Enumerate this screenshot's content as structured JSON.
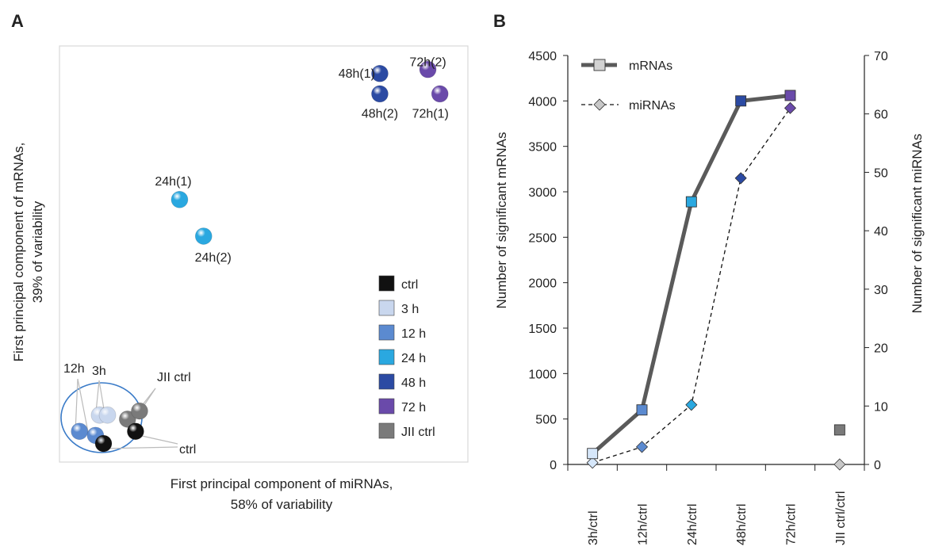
{
  "panels": {
    "a_letter": "A",
    "b_letter": "B"
  },
  "colors": {
    "ctrl": "#111111",
    "3h": "#c9d7ee",
    "12h": "#5b8ad0",
    "24h": "#2aa8e0",
    "48h": "#2b4aa3",
    "72h": "#6a4aaa",
    "jii_ctrl": "#7a7a7a",
    "mrna_line": "#5a5a5a",
    "mirna_marker": "#c8c8c8",
    "circle": "#3a7bc8",
    "frame": "#d8d8d8"
  },
  "chart_data": [
    {
      "type": "scatter",
      "xlabel": [
        "First principal component of  miRNAs,",
        "58% of variability"
      ],
      "ylabel": [
        "First principal component of mRNAs,",
        "39% of variability"
      ],
      "legend": [
        {
          "label": "ctrl",
          "color_key": "ctrl"
        },
        {
          "label": "3 h",
          "color_key": "3h"
        },
        {
          "label": "12 h",
          "color_key": "12h"
        },
        {
          "label": "24 h",
          "color_key": "24h"
        },
        {
          "label": "48 h",
          "color_key": "48h"
        },
        {
          "label": "72 h",
          "color_key": "72h"
        },
        {
          "label": "JII ctrl",
          "color_key": "jii_ctrl"
        }
      ],
      "points": [
        {
          "label": "48h(1)",
          "group": "48h",
          "x": 0.79,
          "y": 0.94
        },
        {
          "label": "48h(2)",
          "group": "48h",
          "x": 0.79,
          "y": 0.89
        },
        {
          "label": "72h(2)",
          "group": "72h",
          "x": 0.91,
          "y": 0.95
        },
        {
          "label": "72h(1)",
          "group": "72h",
          "x": 0.94,
          "y": 0.89
        },
        {
          "label": "24h(1)",
          "group": "24h",
          "x": 0.29,
          "y": 0.63
        },
        {
          "label": "24h(2)",
          "group": "24h",
          "x": 0.35,
          "y": 0.54
        },
        {
          "label": "",
          "group": "12h",
          "x": 0.04,
          "y": 0.06
        },
        {
          "label": "",
          "group": "12h",
          "x": 0.08,
          "y": 0.05
        },
        {
          "label": "",
          "group": "3h",
          "x": 0.09,
          "y": 0.1
        },
        {
          "label": "",
          "group": "3h",
          "x": 0.11,
          "y": 0.1
        },
        {
          "label": "",
          "group": "jii_ctrl",
          "x": 0.16,
          "y": 0.09
        },
        {
          "label": "",
          "group": "jii_ctrl",
          "x": 0.19,
          "y": 0.11
        },
        {
          "label": "",
          "group": "ctrl",
          "x": 0.18,
          "y": 0.06
        },
        {
          "label": "",
          "group": "ctrl",
          "x": 0.1,
          "y": 0.03
        }
      ],
      "cluster_labels": {
        "h12": "12h",
        "h3": "3h",
        "jii": "JII ctrl",
        "ctrl": "ctrl"
      }
    },
    {
      "type": "line",
      "categories": [
        "3h/ctrl",
        "12h/ctrl",
        "24h/ctrl",
        "48h/ctrl",
        "72h/ctrl",
        "JII ctrl/ctrl"
      ],
      "ylabel": "Number  of significant  mRNAs",
      "y2label": "Number of significant  miRNAs",
      "ylim": [
        0,
        4500
      ],
      "y2lim": [
        0,
        70
      ],
      "yticks": [
        0,
        500,
        1000,
        1500,
        2000,
        2500,
        3000,
        3500,
        4000,
        4500
      ],
      "y2ticks": [
        0,
        10,
        20,
        30,
        40,
        50,
        60,
        70
      ],
      "series": [
        {
          "name": "mRNAs",
          "axis": "left",
          "values": [
            120,
            600,
            2890,
            4000,
            4060,
            380
          ],
          "marker_colors": [
            "3h",
            "12h",
            "24h",
            "48h",
            "72h",
            "jii_ctrl"
          ]
        },
        {
          "name": "miRNAs",
          "axis": "right",
          "values": [
            0.3,
            3,
            10.2,
            49,
            61,
            0
          ],
          "marker_colors": [
            "3h",
            "12h",
            "24h",
            "48h",
            "72h",
            "jii_ctrl"
          ]
        }
      ],
      "legend": {
        "mrna": "mRNAs",
        "mirna": "miRNAs"
      }
    }
  ]
}
